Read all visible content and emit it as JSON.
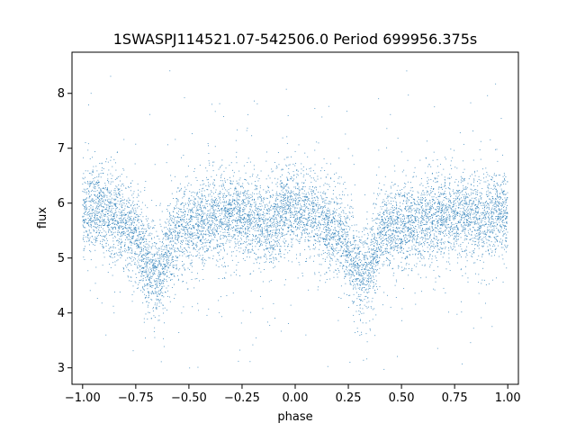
{
  "chart_data": {
    "type": "scatter",
    "title": "1SWASPJ114521.07-542506.0 Period 699956.375s",
    "xlabel": "phase",
    "ylabel": "flux",
    "xlim": [
      -1.05,
      1.05
    ],
    "ylim": [
      2.7,
      8.75
    ],
    "x_ticks": [
      -1.0,
      -0.75,
      -0.5,
      -0.25,
      0.0,
      0.25,
      0.5,
      0.75,
      1.0
    ],
    "x_tick_labels": [
      "−1.00",
      "−0.75",
      "−0.50",
      "−0.25",
      "0.00",
      "0.25",
      "0.50",
      "0.75",
      "1.00"
    ],
    "y_ticks": [
      3,
      4,
      5,
      6,
      7,
      8
    ],
    "y_tick_labels": [
      "3",
      "4",
      "5",
      "6",
      "7",
      "8"
    ],
    "grid": false,
    "legend": "none",
    "point_color": "#1f77b4",
    "light_curve_profile": {
      "x": [
        -1.0,
        -0.95,
        -0.9,
        -0.85,
        -0.8,
        -0.75,
        -0.72,
        -0.7,
        -0.68,
        -0.65,
        -0.62,
        -0.6,
        -0.55,
        -0.5,
        -0.45,
        -0.4,
        -0.35,
        -0.3,
        -0.25,
        -0.2,
        -0.15,
        -0.1,
        -0.05,
        0.0,
        0.05,
        0.1,
        0.15,
        0.2,
        0.25,
        0.28,
        0.3,
        0.32,
        0.35,
        0.38,
        0.4,
        0.45,
        0.5,
        0.55,
        0.6,
        0.65,
        0.7,
        0.75,
        0.8,
        0.85,
        0.9,
        0.95,
        1.0
      ],
      "y": [
        5.75,
        5.95,
        5.85,
        5.7,
        5.6,
        5.45,
        5.15,
        4.9,
        4.75,
        4.7,
        4.85,
        5.2,
        5.5,
        5.6,
        5.62,
        5.68,
        5.72,
        5.78,
        5.75,
        5.7,
        5.6,
        5.65,
        5.85,
        5.95,
        5.85,
        5.7,
        5.6,
        5.45,
        5.15,
        4.9,
        4.75,
        4.7,
        4.85,
        5.2,
        5.45,
        5.55,
        5.6,
        5.62,
        5.65,
        5.7,
        5.75,
        5.8,
        5.78,
        5.7,
        5.75,
        5.85,
        5.8
      ]
    },
    "point_count": 9000,
    "scatter_sigma": 0.38
  }
}
